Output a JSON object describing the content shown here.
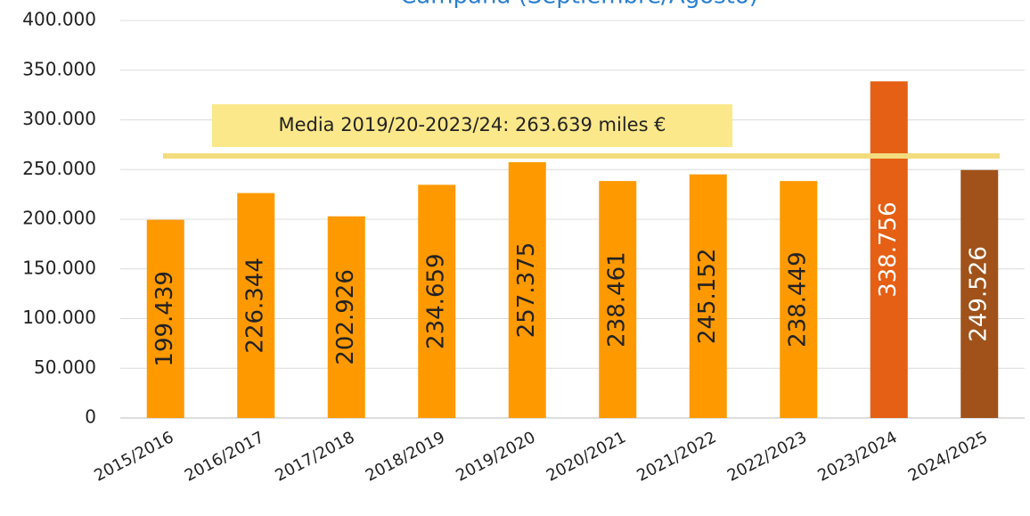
{
  "chart_data": {
    "type": "bar",
    "title": "Campaña (Septiembre/Agosto)",
    "categories": [
      "2015/2016",
      "2016/2017",
      "2017/2018",
      "2018/2019",
      "2019/2020",
      "2020/2021",
      "2021/2022",
      "2022/2023",
      "2023/2024",
      "2024/2025"
    ],
    "values": [
      199439,
      226344,
      202926,
      234659,
      257375,
      238461,
      245152,
      238449,
      338756,
      249526
    ],
    "value_labels": [
      "199.439",
      "226.344",
      "202.926",
      "234.659",
      "257.375",
      "238.461",
      "245.152",
      "238.449",
      "338.756",
      "249.526"
    ],
    "colors": [
      "#ff9900",
      "#ff9900",
      "#ff9900",
      "#ff9900",
      "#ff9900",
      "#ff9900",
      "#ff9900",
      "#ff9900",
      "#e55f14",
      "#a0521a"
    ],
    "value_label_colors": [
      "#222",
      "#222",
      "#222",
      "#222",
      "#222",
      "#222",
      "#222",
      "#222",
      "#ffffff",
      "#ffffff"
    ],
    "ylim": [
      0,
      400000
    ],
    "yticks": [
      0,
      {
        "value": 50000,
        "label": "50.000"
      },
      {
        "value": 100000,
        "label": "100.000"
      },
      {
        "value": 150000,
        "label": "150.000"
      },
      {
        "value": 200000,
        "label": "200.000"
      },
      {
        "value": 250000,
        "label": "250.000"
      },
      {
        "value": 300000,
        "label": "300.000"
      },
      {
        "value": 350000,
        "label": "350.000"
      },
      {
        "value": 400000,
        "label": "400.000"
      }
    ],
    "grid": true,
    "average": {
      "value": 263639,
      "label": "Media 2019/20-2023/24: 263.639 miles €"
    }
  }
}
